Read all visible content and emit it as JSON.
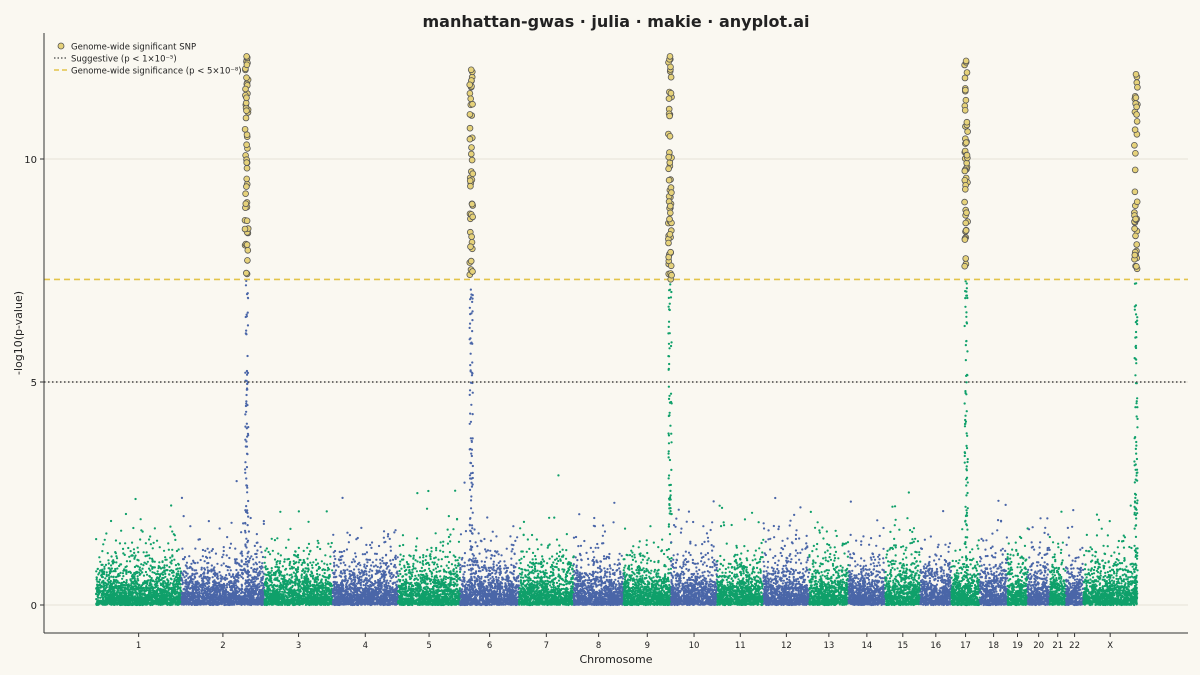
{
  "chart_data": {
    "type": "scatter",
    "title": "manhattan-gwas · julia · makie · anyplot.ai",
    "xlabel": "Chromosome",
    "ylabel": "-log10(p-value)",
    "ylim": [
      -0.6,
      12.9
    ],
    "yticks": [
      0,
      5,
      10
    ],
    "grid": "horizontal",
    "legend_position": "top-left",
    "legend": [
      {
        "key": "significant",
        "label": "Genome-wide significant SNP"
      },
      {
        "key": "suggestive",
        "label": "Suggestive (p < 1×10⁻⁵)"
      },
      {
        "key": "genomewide",
        "label": "Genome-wide significance (p < 5×10⁻⁸)"
      }
    ],
    "thresholds": [
      {
        "name": "suggestive",
        "value": 5.0,
        "color": "#444444",
        "style": "dotted"
      },
      {
        "name": "genome-wide",
        "value": 7.3,
        "color": "#E3C44A",
        "style": "dashed"
      }
    ],
    "colors": {
      "odd": "#0FA06A",
      "even": "#4A66A8",
      "significant": "#E6D27A",
      "significant_edge": "#555555"
    },
    "chromosomes": [
      {
        "label": "1",
        "size": 248
      },
      {
        "label": "2",
        "size": 242
      },
      {
        "label": "3",
        "size": 198
      },
      {
        "label": "4",
        "size": 190
      },
      {
        "label": "5",
        "size": 181
      },
      {
        "label": "6",
        "size": 171
      },
      {
        "label": "7",
        "size": 159
      },
      {
        "label": "8",
        "size": 145
      },
      {
        "label": "9",
        "size": 138
      },
      {
        "label": "10",
        "size": 134
      },
      {
        "label": "11",
        "size": 135
      },
      {
        "label": "12",
        "size": 133
      },
      {
        "label": "13",
        "size": 114
      },
      {
        "label": "14",
        "size": 107
      },
      {
        "label": "15",
        "size": 102
      },
      {
        "label": "16",
        "size": 90
      },
      {
        "label": "17",
        "size": 83
      },
      {
        "label": "18",
        "size": 80
      },
      {
        "label": "19",
        "size": 59
      },
      {
        "label": "20",
        "size": 64
      },
      {
        "label": "21",
        "size": 47
      },
      {
        "label": "22",
        "size": 51
      },
      {
        "label": "X",
        "size": 156
      }
    ],
    "peaks": [
      {
        "chromosome": "2",
        "position_mb": 190,
        "max_neglog10p": 12.3
      },
      {
        "chromosome": "6",
        "position_mb": 32,
        "max_neglog10p": 12.0
      },
      {
        "chromosome": "9",
        "position_mb": 135,
        "max_neglog10p": 12.3
      },
      {
        "chromosome": "17",
        "position_mb": 43,
        "max_neglog10p": 12.2
      },
      {
        "chromosome": "X",
        "position_mb": 153,
        "max_neglog10p": 11.9
      }
    ]
  }
}
